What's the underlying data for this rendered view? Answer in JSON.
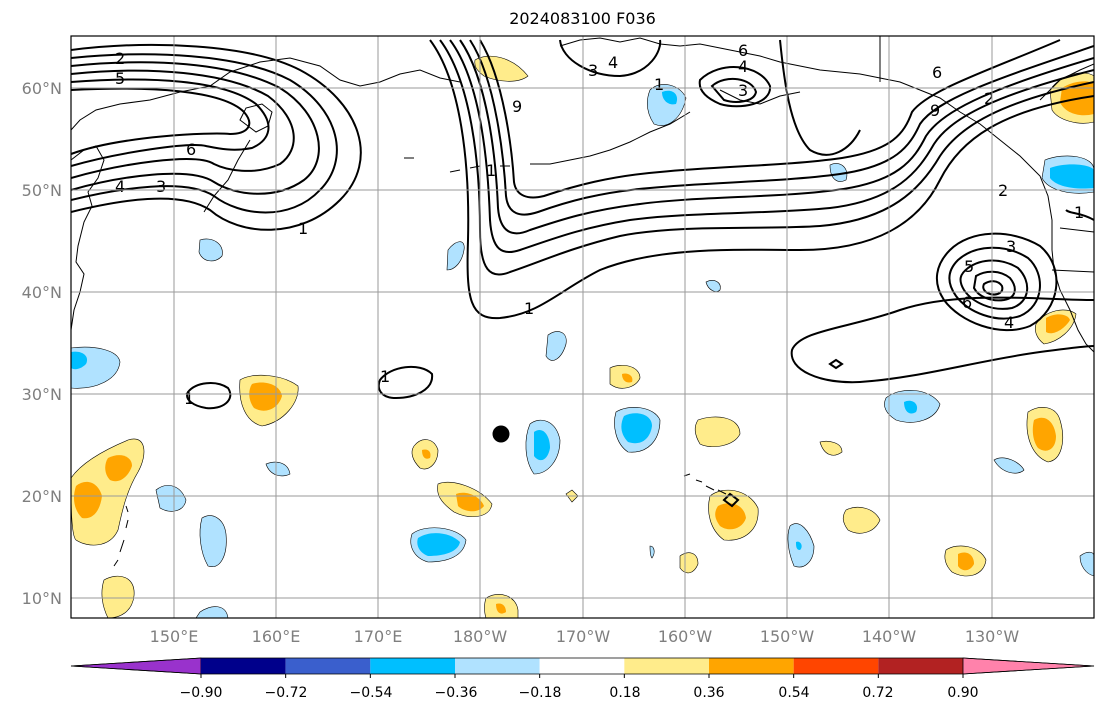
{
  "map": {
    "title": "2024083100 F036",
    "lat_labels": [
      "60°N",
      "50°N",
      "40°N",
      "30°N",
      "20°N",
      "10°N"
    ],
    "lon_labels": [
      "150°E",
      "160°E",
      "170°E",
      "180°W",
      "170°W",
      "160°W",
      "150°W",
      "140°W",
      "130°W"
    ],
    "contour_labels": [
      "2",
      "5",
      "6",
      "4",
      "3",
      "1",
      "6",
      "4",
      "3",
      "1",
      "9",
      "1",
      "6",
      "4",
      "3",
      "2",
      "9",
      "1",
      "1",
      "2",
      "3",
      "5",
      "6",
      "4",
      "1",
      "1"
    ],
    "colorbar": {
      "tick_labels": [
        "−0.90",
        "−0.72",
        "−0.54",
        "−0.36",
        "−0.18",
        "0.18",
        "0.36",
        "0.54",
        "0.72",
        "0.90"
      ],
      "colors": [
        "#9932cc",
        "#00008b",
        "#3a5fcd",
        "#00bfff",
        "#b0e2ff",
        "#ffffff",
        "#ffec8b",
        "#ffa500",
        "#ff4500",
        "#b22222",
        "#ff82ab"
      ]
    },
    "fill_colors": {
      "neg_light": "#b0e2ff",
      "neg_mid": "#00bfff",
      "pos_light": "#ffec8b",
      "pos_mid": "#ffa500"
    },
    "marker": "black dot"
  }
}
